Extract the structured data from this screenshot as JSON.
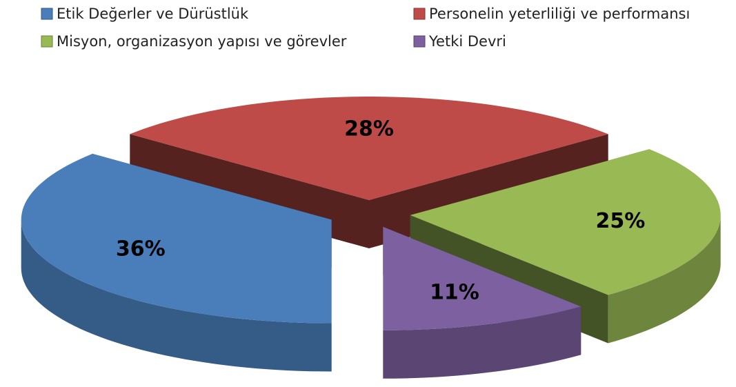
{
  "chart_data": {
    "type": "pie3d",
    "categories": [
      "Etik Değerler ve Dürüstlük",
      "Personelin yeterliliği ve performansı",
      "Misyon, organizasyon yapısı ve görevler",
      "Yetki Devri"
    ],
    "values": [
      36,
      28,
      25,
      11
    ],
    "value_labels": [
      "36%",
      "28%",
      "25%",
      "11%"
    ],
    "colors": [
      "#4a7ebb",
      "#be4b48",
      "#98b954",
      "#7d60a0"
    ],
    "legend": "top"
  }
}
